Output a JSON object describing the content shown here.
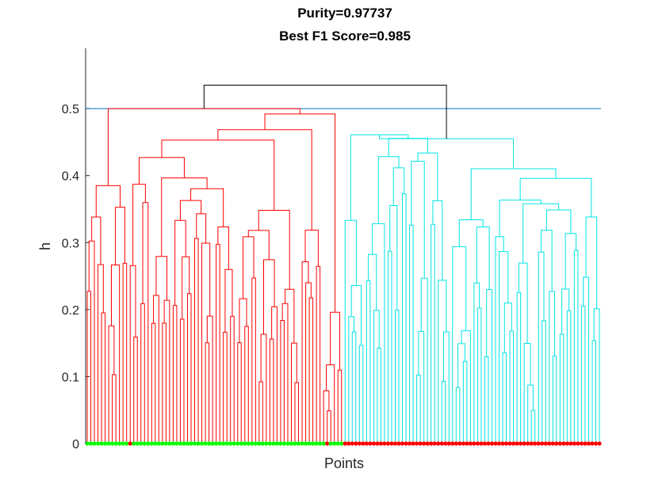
{
  "chart_data": {
    "type": "dendrogram",
    "title_lines": [
      "Purity=0.97737",
      "Best F1 Score=0.985"
    ],
    "xlabel": "Points",
    "ylabel": "h",
    "ylim": [
      0,
      0.59
    ],
    "yticks": [
      0,
      0.1,
      0.2,
      0.3,
      0.4,
      0.5
    ],
    "ytick_labels": [
      "0",
      "0.1",
      "0.2",
      "0.3",
      "0.4",
      "0.5"
    ],
    "cut_height": 0.5,
    "root_height": 0.535,
    "leaves_per_cluster": 72,
    "clusters": [
      {
        "name": "red",
        "color": "#ff0000",
        "merge_height": 0.5,
        "group_heights": [
          0.345,
          0.36,
          0.395,
          0.285,
          0.34,
          0.35,
          0.33,
          0.315,
          0.28,
          0.235,
          0.325,
          0.2
        ]
      },
      {
        "name": "cyan",
        "color": "#00e5e5",
        "merge_height": 0.455,
        "group_heights": [
          0.34,
          0.335,
          0.42,
          0.43,
          0.37,
          0.3,
          0.33,
          0.315,
          0.275,
          0.325,
          0.32,
          0.345
        ]
      }
    ],
    "leaf_marker_colors": [
      "#00ff00",
      "#ff0000"
    ],
    "cut_line_color": "#0072bd",
    "root_link_color": "#000000"
  }
}
